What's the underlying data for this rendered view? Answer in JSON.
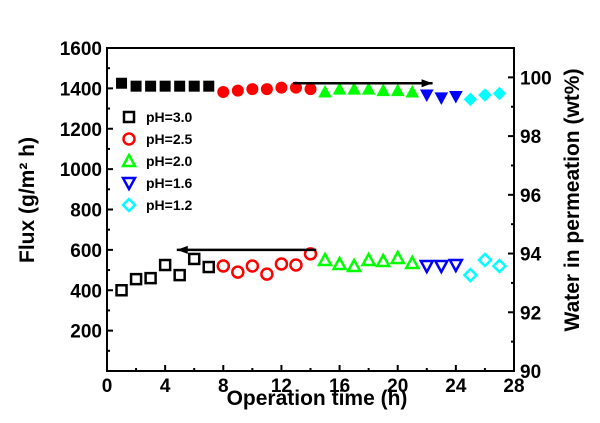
{
  "chart_data": {
    "type": "scatter",
    "title": "",
    "xlabel": "Operation time (h)",
    "ylabel_left": "Flux (g/m² h)",
    "ylabel_right": "Water in permeation (wt%)",
    "xlim": [
      0,
      28
    ],
    "ylim_left": [
      0,
      1600
    ],
    "ylim_right": [
      90,
      101
    ],
    "x_ticks": [
      "0",
      "4",
      "8",
      "12",
      "16",
      "20",
      "24",
      "28"
    ],
    "y_left_ticks": [
      "200",
      "400",
      "600",
      "800",
      "1000",
      "1200",
      "1400",
      "1600"
    ],
    "y_right_ticks": [
      "90",
      "92",
      "94",
      "96",
      "98",
      "100"
    ],
    "legend_position": "upper-left",
    "grid": false,
    "series": [
      {
        "name": "pH=3.0",
        "marker": "square",
        "color": "#000000",
        "flux": {
          "x": [
            1,
            2,
            3,
            4,
            5,
            6,
            7
          ],
          "y": [
            400,
            455,
            460,
            525,
            475,
            555,
            515
          ]
        },
        "water": {
          "x": [
            1,
            2,
            3,
            4,
            5,
            6,
            7
          ],
          "y": [
            99.8,
            99.7,
            99.7,
            99.7,
            99.7,
            99.7,
            99.7
          ]
        }
      },
      {
        "name": "pH=2.5",
        "marker": "circle",
        "color": "#ff0000",
        "flux": {
          "x": [
            8,
            9,
            10,
            11,
            12,
            13,
            14
          ],
          "y": [
            520,
            490,
            520,
            480,
            530,
            525,
            580
          ]
        },
        "water": {
          "x": [
            8,
            9,
            10,
            11,
            12,
            13,
            14
          ],
          "y": [
            99.5,
            99.55,
            99.6,
            99.6,
            99.65,
            99.65,
            99.6
          ]
        }
      },
      {
        "name": "pH=2.0",
        "marker": "triangle-up",
        "color": "#00ff00",
        "flux": {
          "x": [
            15,
            16,
            17,
            18,
            19,
            20,
            21
          ],
          "y": [
            550,
            530,
            520,
            550,
            545,
            560,
            535
          ]
        },
        "water": {
          "x": [
            15,
            16,
            17,
            18,
            19,
            20,
            21
          ],
          "y": [
            99.5,
            99.6,
            99.6,
            99.6,
            99.55,
            99.55,
            99.5
          ]
        }
      },
      {
        "name": "pH=1.6",
        "marker": "triangle-down",
        "color": "#0000ff",
        "flux": {
          "x": [
            22,
            23,
            24
          ],
          "y": [
            520,
            520,
            525
          ]
        },
        "water": {
          "x": [
            22,
            23,
            24
          ],
          "y": [
            99.4,
            99.3,
            99.35
          ]
        }
      },
      {
        "name": "pH=1.2",
        "marker": "diamond",
        "color": "#00ffff",
        "flux": {
          "x": [
            25,
            26,
            27
          ],
          "y": [
            475,
            550,
            520
          ]
        },
        "water": {
          "x": [
            25,
            26,
            27
          ],
          "y": [
            99.25,
            99.4,
            99.45
          ]
        }
      }
    ],
    "arrows": [
      {
        "axis": "right",
        "direction": "right",
        "x_from": 12.8,
        "x_to": 22.4,
        "y": 99.8
      },
      {
        "axis": "left",
        "direction": "left",
        "x_from": 14.4,
        "x_to": 4.8,
        "y": 600
      }
    ]
  }
}
